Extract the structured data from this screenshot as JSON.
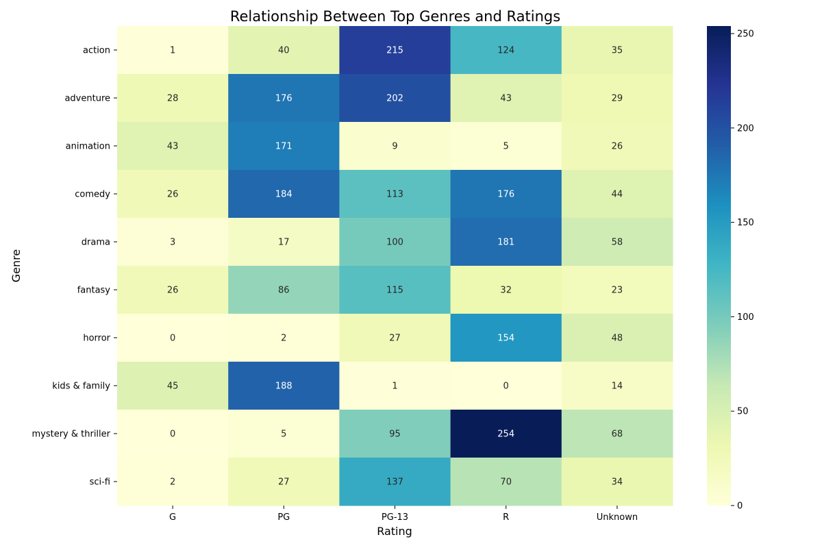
{
  "chart_data": {
    "type": "heatmap",
    "title": "Relationship Between Top Genres and Ratings",
    "xlabel": "Rating",
    "ylabel": "Genre",
    "columns": [
      "G",
      "PG",
      "PG-13",
      "R",
      "Unknown"
    ],
    "rows": [
      "action",
      "adventure",
      "animation",
      "comedy",
      "drama",
      "fantasy",
      "horror",
      "kids & family",
      "mystery & thriller",
      "sci-fi"
    ],
    "values": [
      [
        1,
        40,
        215,
        124,
        35
      ],
      [
        28,
        176,
        202,
        43,
        29
      ],
      [
        43,
        171,
        9,
        5,
        26
      ],
      [
        26,
        184,
        113,
        176,
        44
      ],
      [
        3,
        17,
        100,
        181,
        58
      ],
      [
        26,
        86,
        115,
        32,
        23
      ],
      [
        0,
        2,
        27,
        154,
        48
      ],
      [
        45,
        188,
        1,
        0,
        14
      ],
      [
        0,
        5,
        95,
        254,
        68
      ],
      [
        2,
        27,
        137,
        70,
        34
      ]
    ],
    "colorbar": {
      "min": 0,
      "max": 254,
      "ticks": [
        0,
        50,
        100,
        150,
        200,
        250
      ],
      "colormap": "YlGnBu",
      "colormap_stops": [
        "#ffffd9",
        "#edf8b1",
        "#c7e9b4",
        "#7fcdbb",
        "#41b6c4",
        "#1d91c0",
        "#225ea8",
        "#253494",
        "#081d58"
      ]
    },
    "grid": false,
    "annotations": "cell values"
  }
}
